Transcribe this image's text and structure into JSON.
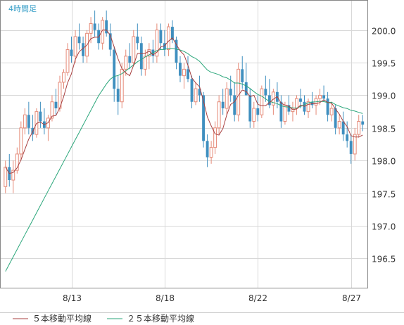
{
  "timeframe_label": "4時間足",
  "chart_data": {
    "type": "candlestick",
    "x_ticks": [
      "8/13",
      "8/18",
      "8/22",
      "8/27"
    ],
    "y_ticks": [
      "200.0",
      "199.5",
      "199.0",
      "198.5",
      "198.0",
      "197.5",
      "197.0",
      "196.5"
    ],
    "ylim": [
      196.05,
      200.45
    ],
    "grid": true,
    "colors": {
      "up": "#e58a78",
      "down": "#3f8fbf",
      "ma5": "#a84040",
      "ma25": "#2aa67a",
      "grid": "#d8d8d8",
      "axis": "#888888"
    },
    "legend": [
      {
        "label": "５本移動平均線",
        "color": "#a84040"
      },
      {
        "label": "２５本移動平均線",
        "color": "#2aa67a"
      }
    ],
    "candles": [
      [
        197.6,
        198.0,
        197.5,
        197.9
      ],
      [
        197.9,
        198.1,
        197.6,
        197.7
      ],
      [
        197.7,
        198.0,
        197.5,
        197.85
      ],
      [
        197.85,
        198.2,
        197.8,
        198.1
      ],
      [
        198.1,
        198.6,
        198.0,
        198.5
      ],
      [
        198.5,
        198.8,
        198.4,
        198.7
      ],
      [
        198.7,
        198.9,
        198.4,
        198.5
      ],
      [
        198.5,
        198.7,
        198.3,
        198.4
      ],
      [
        198.4,
        198.8,
        198.35,
        198.75
      ],
      [
        198.75,
        198.9,
        198.5,
        198.6
      ],
      [
        198.6,
        198.8,
        198.4,
        198.5
      ],
      [
        198.5,
        198.7,
        198.3,
        198.65
      ],
      [
        198.65,
        199.0,
        198.6,
        198.9
      ],
      [
        198.9,
        199.1,
        198.7,
        198.8
      ],
      [
        198.8,
        199.3,
        198.75,
        199.2
      ],
      [
        199.2,
        199.4,
        199.1,
        199.35
      ],
      [
        199.35,
        199.8,
        199.3,
        199.7
      ],
      [
        199.7,
        199.9,
        199.5,
        199.6
      ],
      [
        199.6,
        200.0,
        199.5,
        199.9
      ],
      [
        199.9,
        200.1,
        199.7,
        199.8
      ],
      [
        199.8,
        199.9,
        199.5,
        199.6
      ],
      [
        199.6,
        200.0,
        199.5,
        199.95
      ],
      [
        199.95,
        200.2,
        199.8,
        200.1
      ],
      [
        200.1,
        200.3,
        199.9,
        200.0
      ],
      [
        200.0,
        200.1,
        199.7,
        199.8
      ],
      [
        199.8,
        200.2,
        199.7,
        200.15
      ],
      [
        200.15,
        200.3,
        199.9,
        199.95
      ],
      [
        199.95,
        200.1,
        199.6,
        199.7
      ],
      [
        199.7,
        199.75,
        198.9,
        199.1
      ],
      [
        199.1,
        199.3,
        198.7,
        198.9
      ],
      [
        198.9,
        199.5,
        198.8,
        199.4
      ],
      [
        199.4,
        199.7,
        199.3,
        199.6
      ],
      [
        199.6,
        199.8,
        199.4,
        199.5
      ],
      [
        199.5,
        200.0,
        199.45,
        199.9
      ],
      [
        199.9,
        200.1,
        199.7,
        199.8
      ],
      [
        199.8,
        199.9,
        199.3,
        199.4
      ],
      [
        199.4,
        199.7,
        199.3,
        199.6
      ],
      [
        199.6,
        199.8,
        199.4,
        199.7
      ],
      [
        199.7,
        199.85,
        199.5,
        199.6
      ],
      [
        199.6,
        200.1,
        199.5,
        200.0
      ],
      [
        200.0,
        200.1,
        199.7,
        199.8
      ],
      [
        199.8,
        200.0,
        199.6,
        199.7
      ],
      [
        199.7,
        200.1,
        199.6,
        200.05
      ],
      [
        200.05,
        200.15,
        199.8,
        199.85
      ],
      [
        199.85,
        199.9,
        199.4,
        199.5
      ],
      [
        199.5,
        199.6,
        199.2,
        199.3
      ],
      [
        199.3,
        199.5,
        199.1,
        199.4
      ],
      [
        199.4,
        199.6,
        199.2,
        199.25
      ],
      [
        199.25,
        199.3,
        198.8,
        198.9
      ],
      [
        198.9,
        199.2,
        198.85,
        199.1
      ],
      [
        199.1,
        199.3,
        198.9,
        199.0
      ],
      [
        199.0,
        199.05,
        198.2,
        198.3
      ],
      [
        198.3,
        198.4,
        197.9,
        198.05
      ],
      [
        198.05,
        198.3,
        197.95,
        198.2
      ],
      [
        198.2,
        198.6,
        198.1,
        198.5
      ],
      [
        198.5,
        199.0,
        198.4,
        198.9
      ],
      [
        198.9,
        199.1,
        198.7,
        198.8
      ],
      [
        198.8,
        199.2,
        198.7,
        199.1
      ],
      [
        199.1,
        199.3,
        198.9,
        199.0
      ],
      [
        199.0,
        199.2,
        198.6,
        198.7
      ],
      [
        198.7,
        199.5,
        198.6,
        199.4
      ],
      [
        199.4,
        199.6,
        199.1,
        199.2
      ],
      [
        199.2,
        199.5,
        199.0,
        199.0
      ],
      [
        199.0,
        199.1,
        198.5,
        198.6
      ],
      [
        198.6,
        198.9,
        198.5,
        198.8
      ],
      [
        198.8,
        199.0,
        198.6,
        198.7
      ],
      [
        198.7,
        199.15,
        198.65,
        199.1
      ],
      [
        199.1,
        199.3,
        198.9,
        199.0
      ],
      [
        199.0,
        199.25,
        198.8,
        198.85
      ],
      [
        198.85,
        199.1,
        198.7,
        199.05
      ],
      [
        199.05,
        199.2,
        198.8,
        198.9
      ],
      [
        198.9,
        199.0,
        198.5,
        198.6
      ],
      [
        198.6,
        198.9,
        198.55,
        198.85
      ],
      [
        198.85,
        199.0,
        198.7,
        198.75
      ],
      [
        198.75,
        198.9,
        198.6,
        198.8
      ],
      [
        198.8,
        199.0,
        198.7,
        198.95
      ],
      [
        198.95,
        199.1,
        198.8,
        198.9
      ],
      [
        198.9,
        199.0,
        198.7,
        198.75
      ],
      [
        198.75,
        198.95,
        198.65,
        198.9
      ],
      [
        198.9,
        199.05,
        198.8,
        198.85
      ],
      [
        198.85,
        199.0,
        198.7,
        198.95
      ],
      [
        198.95,
        199.1,
        198.85,
        199.0
      ],
      [
        199.0,
        199.15,
        198.9,
        198.95
      ],
      [
        198.95,
        199.05,
        198.6,
        198.7
      ],
      [
        198.7,
        198.9,
        198.6,
        198.8
      ],
      [
        198.8,
        198.85,
        198.4,
        198.5
      ],
      [
        198.5,
        198.7,
        198.4,
        198.6
      ],
      [
        198.6,
        198.75,
        198.3,
        198.4
      ],
      [
        198.4,
        198.6,
        198.2,
        198.3
      ],
      [
        198.3,
        198.4,
        197.95,
        198.1
      ],
      [
        198.1,
        198.5,
        198.0,
        198.4
      ],
      [
        198.4,
        198.7,
        198.35,
        198.6
      ],
      [
        198.6,
        198.7,
        198.45,
        198.55
      ]
    ]
  }
}
